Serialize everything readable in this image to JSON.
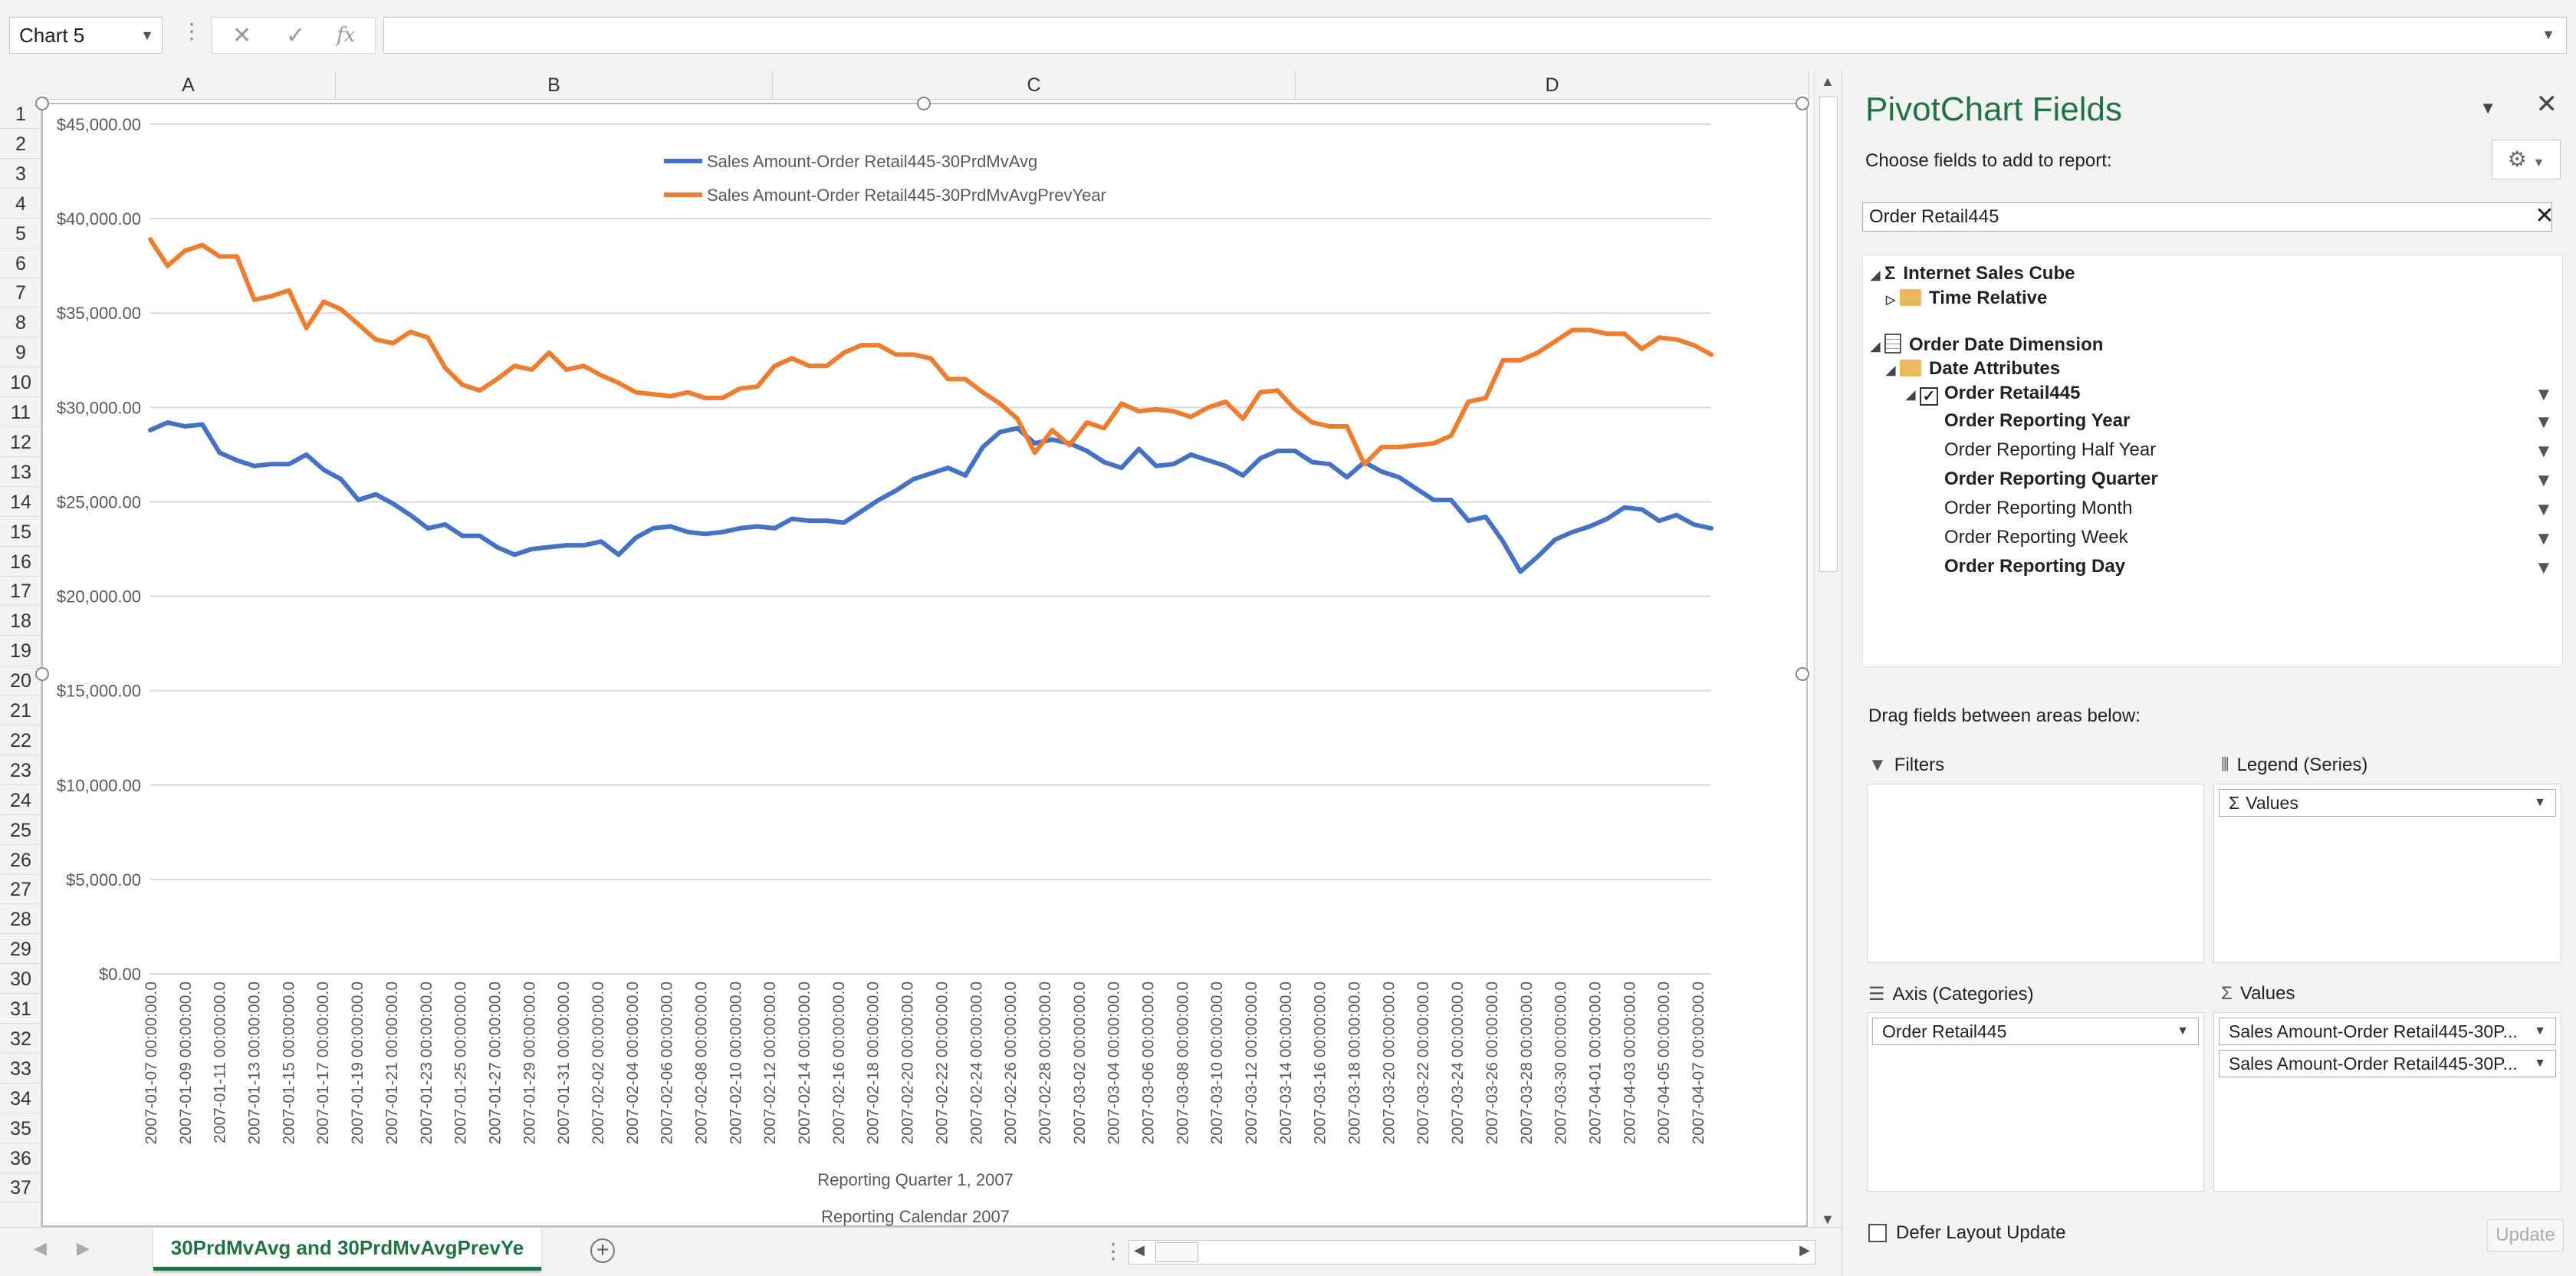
{
  "name_box": "Chart 5",
  "formula": {
    "cancel_icon": "✕",
    "enter_icon": "✓",
    "fx_icon": "fx",
    "value": ""
  },
  "columns": [
    "A",
    "B",
    "C",
    "D"
  ],
  "rows": [
    "1",
    "2",
    "3",
    "4",
    "5",
    "6",
    "7",
    "8",
    "9",
    "10",
    "11",
    "12",
    "13",
    "14",
    "15",
    "16",
    "17",
    "18",
    "19",
    "20",
    "21",
    "22",
    "23",
    "24",
    "25",
    "26",
    "27",
    "28",
    "29",
    "30",
    "31",
    "32",
    "33",
    "34",
    "35",
    "36",
    "37"
  ],
  "sheet_tab": "30PrdMvAvg and 30PrdMvAvgPrevYe",
  "chart_data": {
    "type": "line",
    "x_group_labels": [
      "Reporting Quarter 1, 2007",
      "Reporting Calendar 2007"
    ],
    "ylim": [
      0,
      45000
    ],
    "y_ticks": [
      "$45,000.00",
      "$40,000.00",
      "$35,000.00",
      "$30,000.00",
      "$25,000.00",
      "$20,000.00",
      "$15,000.00",
      "$10,000.00",
      "$5,000.00",
      "$0.00"
    ],
    "tick_labels": [
      "2007-01-07 00:00:00.0",
      "2007-01-09 00:00:00.0",
      "2007-01-11 00:00:00.0",
      "2007-01-13 00:00:00.0",
      "2007-01-15 00:00:00.0",
      "2007-01-17 00:00:00.0",
      "2007-01-19 00:00:00.0",
      "2007-01-21 00:00:00.0",
      "2007-01-23 00:00:00.0",
      "2007-01-25 00:00:00.0",
      "2007-01-27 00:00:00.0",
      "2007-01-29 00:00:00.0",
      "2007-01-31 00:00:00.0",
      "2007-02-02 00:00:00.0",
      "2007-02-04 00:00:00.0",
      "2007-02-06 00:00:00.0",
      "2007-02-08 00:00:00.0",
      "2007-02-10 00:00:00.0",
      "2007-02-12 00:00:00.0",
      "2007-02-14 00:00:00.0",
      "2007-02-16 00:00:00.0",
      "2007-02-18 00:00:00.0",
      "2007-02-20 00:00:00.0",
      "2007-02-22 00:00:00.0",
      "2007-02-24 00:00:00.0",
      "2007-02-26 00:00:00.0",
      "2007-02-28 00:00:00.0",
      "2007-03-02 00:00:00.0",
      "2007-03-04 00:00:00.0",
      "2007-03-06 00:00:00.0",
      "2007-03-08 00:00:00.0",
      "2007-03-10 00:00:00.0",
      "2007-03-12 00:00:00.0",
      "2007-03-14 00:00:00.0",
      "2007-03-16 00:00:00.0",
      "2007-03-18 00:00:00.0",
      "2007-03-20 00:00:00.0",
      "2007-03-22 00:00:00.0",
      "2007-03-24 00:00:00.0",
      "2007-03-26 00:00:00.0",
      "2007-03-28 00:00:00.0",
      "2007-03-30 00:00:00.0",
      "2007-04-01 00:00:00.0",
      "2007-04-03 00:00:00.0",
      "2007-04-05 00:00:00.0",
      "2007-04-07 00:00:00.0"
    ],
    "series": [
      {
        "name": "Sales Amount-Order Retail445-30PrdMvAvg",
        "color": "#4472c4",
        "values": [
          28800,
          29200,
          29000,
          29100,
          27600,
          27200,
          26900,
          27000,
          27000,
          27500,
          26700,
          26200,
          25100,
          25400,
          24900,
          24300,
          23600,
          23800,
          23200,
          23200,
          22600,
          22200,
          22500,
          22600,
          22700,
          22700,
          22900,
          22200,
          23100,
          23600,
          23700,
          23400,
          23300,
          23400,
          23600,
          23700,
          23600,
          24100,
          24000,
          24000,
          23900,
          24500,
          25100,
          25600,
          26200,
          26500,
          26800,
          26400,
          27900,
          28700,
          28900,
          28100,
          28300,
          28100,
          27700,
          27100,
          26800,
          27800,
          26900,
          27000,
          27500,
          27200,
          26900,
          26400,
          27300,
          27700,
          27700,
          27100,
          27000,
          26300,
          27100,
          26600,
          26300,
          25700,
          25100,
          25100,
          24000,
          24200,
          22900,
          21300,
          22100,
          23000,
          23400,
          23700,
          24100,
          24700,
          24600,
          24000,
          24300,
          23800,
          23600
        ]
      },
      {
        "name": "Sales Amount-Order Retail445-30PrdMvAvgPrevYear",
        "color": "#ed7d31",
        "values": [
          38900,
          37500,
          38300,
          38600,
          38000,
          38000,
          35700,
          35900,
          36200,
          34200,
          35600,
          35200,
          34400,
          33600,
          33400,
          34000,
          33700,
          32100,
          31200,
          30900,
          31500,
          32200,
          32000,
          32900,
          32000,
          32200,
          31700,
          31300,
          30800,
          30700,
          30600,
          30800,
          30500,
          30500,
          31000,
          31100,
          32200,
          32600,
          32200,
          32200,
          32900,
          33300,
          33300,
          32800,
          32800,
          32600,
          31500,
          31500,
          30800,
          30200,
          29400,
          27600,
          28800,
          28000,
          29200,
          28900,
          30200,
          29800,
          29900,
          29800,
          29500,
          30000,
          30300,
          29400,
          30800,
          30900,
          29900,
          29200,
          29000,
          29000,
          27000,
          27900,
          27900,
          28000,
          28100,
          28500,
          30300,
          30500,
          32500,
          32500,
          32900,
          33500,
          34100,
          34100,
          33900,
          33900,
          33100,
          33700,
          33600,
          33300,
          32800
        ]
      }
    ]
  },
  "pane": {
    "title": "PivotChart Fields",
    "subtitle": "Choose fields to add to report:",
    "search_value": "Order Retail445",
    "tree": {
      "cube": "Internet Sales Cube",
      "time_relative": "Time Relative",
      "order_date_dim": "Order Date Dimension",
      "date_attributes": "Date Attributes",
      "order_retail": "Order Retail445",
      "fields": [
        "Order Reporting Year",
        "Order Reporting Half Year",
        "Order Reporting Quarter",
        "Order Reporting Month",
        "Order Reporting Week",
        "Order Reporting Day"
      ]
    },
    "drag_label": "Drag fields between areas below:",
    "filters_label": "Filters",
    "legend_label": "Legend (Series)",
    "legend_item": "Values",
    "axis_label": "Axis (Categories)",
    "axis_item": "Order Retail445",
    "values_label": "Values",
    "values_items": [
      "Sales Amount-Order Retail445-30P...",
      "Sales Amount-Order Retail445-30P..."
    ],
    "defer_label": "Defer Layout Update",
    "update_label": "Update"
  }
}
